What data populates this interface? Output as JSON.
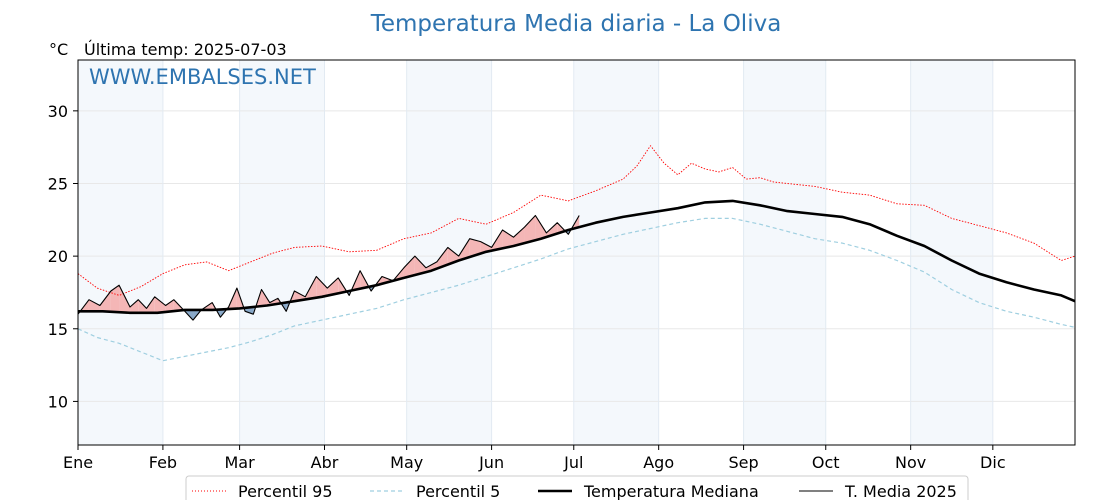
{
  "chart_data": {
    "type": "line",
    "title": "Temperatura Media diaria - La Oliva",
    "unit_label": "°C",
    "last_temp_label": "Última temp: 2025-07-03",
    "watermark": "WWW.EMBALSES.NET",
    "ylim": [
      7,
      33.5
    ],
    "yticks": [
      10,
      15,
      20,
      25,
      30
    ],
    "months": [
      "Ene",
      "Feb",
      "Mar",
      "Abr",
      "May",
      "Jun",
      "Jul",
      "Ago",
      "Sep",
      "Oct",
      "Nov",
      "Dic"
    ],
    "grid": true,
    "x_day_of_year": true,
    "legend_position": "bottom-center",
    "series": [
      {
        "name": "Percentil 95",
        "color": "#ff0000",
        "style": "dotted",
        "x": [
          1,
          8,
          16,
          24,
          32,
          40,
          48,
          56,
          64,
          72,
          80,
          90,
          100,
          110,
          120,
          130,
          140,
          150,
          160,
          170,
          180,
          190,
          200,
          205,
          210,
          215,
          220,
          225,
          230,
          235,
          240,
          245,
          250,
          255,
          260,
          270,
          280,
          290,
          300,
          310,
          320,
          330,
          340,
          350,
          360,
          365
        ],
        "values": [
          18.8,
          17.8,
          17.3,
          17.9,
          18.8,
          19.4,
          19.6,
          19.0,
          19.6,
          20.2,
          20.6,
          20.7,
          20.3,
          20.4,
          21.2,
          21.6,
          22.6,
          22.2,
          23.0,
          24.2,
          23.8,
          24.5,
          25.3,
          26.2,
          27.6,
          26.4,
          25.6,
          26.4,
          26.0,
          25.8,
          26.1,
          25.3,
          25.4,
          25.1,
          25.0,
          24.8,
          24.4,
          24.2,
          23.6,
          23.5,
          22.6,
          22.1,
          21.6,
          20.9,
          19.7,
          20.0
        ]
      },
      {
        "name": "Percentil 5",
        "color": "#9fcfe0",
        "style": "dashed",
        "x": [
          1,
          8,
          16,
          24,
          32,
          40,
          48,
          56,
          64,
          72,
          80,
          90,
          100,
          110,
          120,
          130,
          140,
          150,
          160,
          170,
          180,
          190,
          200,
          210,
          220,
          230,
          240,
          250,
          260,
          270,
          280,
          290,
          300,
          310,
          320,
          330,
          340,
          350,
          360,
          365
        ],
        "values": [
          15.0,
          14.4,
          14.0,
          13.4,
          12.8,
          13.1,
          13.4,
          13.7,
          14.1,
          14.6,
          15.2,
          15.6,
          16.0,
          16.4,
          17.0,
          17.5,
          18.0,
          18.6,
          19.2,
          19.8,
          20.5,
          21.0,
          21.5,
          21.9,
          22.3,
          22.6,
          22.6,
          22.2,
          21.7,
          21.2,
          20.9,
          20.4,
          19.7,
          18.9,
          17.7,
          16.8,
          16.2,
          15.8,
          15.3,
          15.1
        ]
      },
      {
        "name": "Temperatura Mediana",
        "color": "#000000",
        "style": "solid-thick",
        "x": [
          1,
          10,
          20,
          30,
          40,
          50,
          60,
          70,
          80,
          90,
          100,
          110,
          120,
          130,
          140,
          150,
          160,
          170,
          180,
          190,
          200,
          210,
          220,
          230,
          240,
          250,
          260,
          270,
          280,
          290,
          300,
          310,
          320,
          330,
          340,
          350,
          360,
          365
        ],
        "values": [
          16.2,
          16.2,
          16.1,
          16.1,
          16.3,
          16.3,
          16.4,
          16.6,
          16.9,
          17.2,
          17.6,
          18.0,
          18.5,
          19.0,
          19.7,
          20.3,
          20.7,
          21.2,
          21.8,
          22.3,
          22.7,
          23.0,
          23.3,
          23.7,
          23.8,
          23.5,
          23.1,
          22.9,
          22.7,
          22.2,
          21.4,
          20.7,
          19.7,
          18.8,
          18.2,
          17.7,
          17.3,
          16.9
        ]
      },
      {
        "name": "T. Media 2025",
        "color": "#000000",
        "style": "solid-thin",
        "x": [
          1,
          5,
          9,
          13,
          16,
          20,
          23,
          26,
          29,
          33,
          36,
          40,
          43,
          46,
          50,
          53,
          56,
          59,
          62,
          65,
          68,
          71,
          74,
          77,
          80,
          84,
          88,
          92,
          96,
          100,
          104,
          108,
          112,
          116,
          120,
          124,
          128,
          132,
          136,
          140,
          144,
          148,
          152,
          156,
          160,
          164,
          168,
          172,
          176,
          180,
          184
        ],
        "values": [
          16.0,
          17.0,
          16.6,
          17.6,
          18.0,
          16.5,
          17.0,
          16.4,
          17.2,
          16.6,
          17.0,
          16.2,
          15.6,
          16.3,
          16.8,
          15.8,
          16.5,
          17.8,
          16.2,
          16.0,
          17.7,
          16.8,
          17.1,
          16.2,
          17.6,
          17.2,
          18.6,
          17.8,
          18.5,
          17.3,
          19.0,
          17.6,
          18.6,
          18.3,
          19.2,
          20.0,
          19.2,
          19.6,
          20.6,
          20.0,
          21.2,
          21.0,
          20.6,
          21.8,
          21.3,
          22.0,
          22.8,
          21.6,
          22.3,
          21.5,
          22.8
        ]
      }
    ],
    "legend": [
      {
        "label": "Percentil 95"
      },
      {
        "label": "Percentil 5"
      },
      {
        "label": "Temperatura Mediana"
      },
      {
        "label": "T. Media 2025"
      }
    ]
  }
}
